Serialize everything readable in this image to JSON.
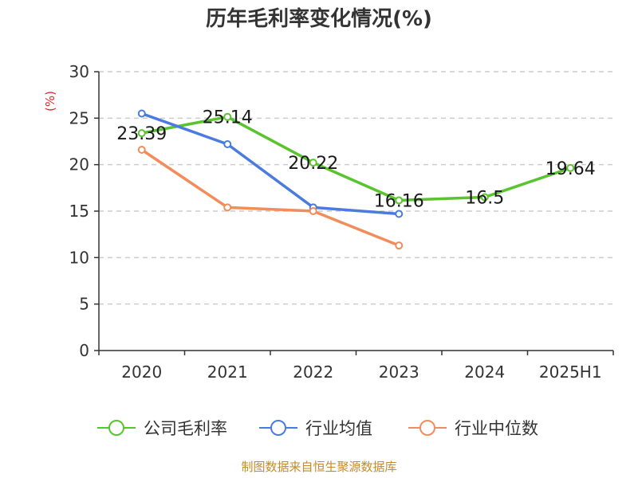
{
  "chart_data": {
    "type": "line",
    "title": "历年毛利率变化情况(%)",
    "ylabel": "(%)",
    "categories": [
      "2020",
      "2021",
      "2022",
      "2023",
      "2024",
      "2025H1"
    ],
    "ylim": [
      0,
      30
    ],
    "yticks": [
      0,
      5,
      10,
      15,
      20,
      25,
      30
    ],
    "grid": "horizontal-dashed",
    "legend_position": "bottom",
    "series": [
      {
        "name": "公司毛利率",
        "color": "#5ac42f",
        "values": [
          23.39,
          25.14,
          20.22,
          16.16,
          16.5,
          19.64
        ],
        "labels": [
          "23.39",
          "25.14",
          "20.22",
          "16.16",
          "16.5",
          "19.64"
        ]
      },
      {
        "name": "行业均值",
        "color": "#4b7bde",
        "values": [
          25.5,
          22.2,
          15.4,
          14.7,
          null,
          null
        ]
      },
      {
        "name": "行业中位数",
        "color": "#f28c5a",
        "values": [
          21.6,
          15.4,
          15.0,
          11.3,
          null,
          null
        ]
      }
    ]
  },
  "source_text": "制图数据来自恒生聚源数据库"
}
